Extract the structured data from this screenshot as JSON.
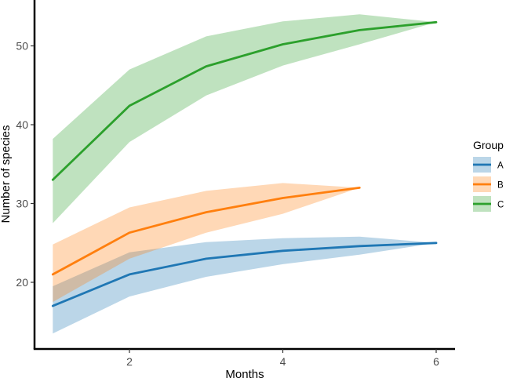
{
  "chart_data": {
    "type": "line",
    "xlabel": "Months",
    "ylabel": "Number of species",
    "x_ticks": [
      2,
      4,
      6
    ],
    "y_ticks": [
      20,
      30,
      40,
      50
    ],
    "legend": {
      "title": "Group",
      "position": "right"
    },
    "series": [
      {
        "name": "A",
        "color": "#1f77b4",
        "x": [
          1,
          2,
          3,
          4,
          5,
          6
        ],
        "y": [
          17.0,
          21.0,
          23.0,
          24.0,
          24.6,
          25.0
        ],
        "lower": [
          13.5,
          18.2,
          20.7,
          22.3,
          23.5,
          25.0
        ],
        "upper": [
          19.5,
          23.8,
          25.1,
          25.6,
          25.8,
          25.0
        ]
      },
      {
        "name": "B",
        "color": "#ff7f0e",
        "x": [
          1,
          2,
          3,
          4,
          5
        ],
        "y": [
          21.0,
          26.3,
          28.9,
          30.7,
          32.0
        ],
        "lower": [
          17.5,
          23.0,
          26.3,
          28.7,
          32.0
        ],
        "upper": [
          24.8,
          29.5,
          31.6,
          32.6,
          32.0
        ]
      },
      {
        "name": "C",
        "color": "#2ca02c",
        "x": [
          1,
          2,
          3,
          4,
          5,
          6
        ],
        "y": [
          33.0,
          42.4,
          47.4,
          50.2,
          52.0,
          53.0
        ],
        "lower": [
          27.5,
          37.8,
          43.7,
          47.5,
          50.2,
          53.0
        ],
        "upper": [
          38.2,
          47.0,
          51.2,
          53.1,
          54.0,
          53.0
        ]
      }
    ]
  }
}
